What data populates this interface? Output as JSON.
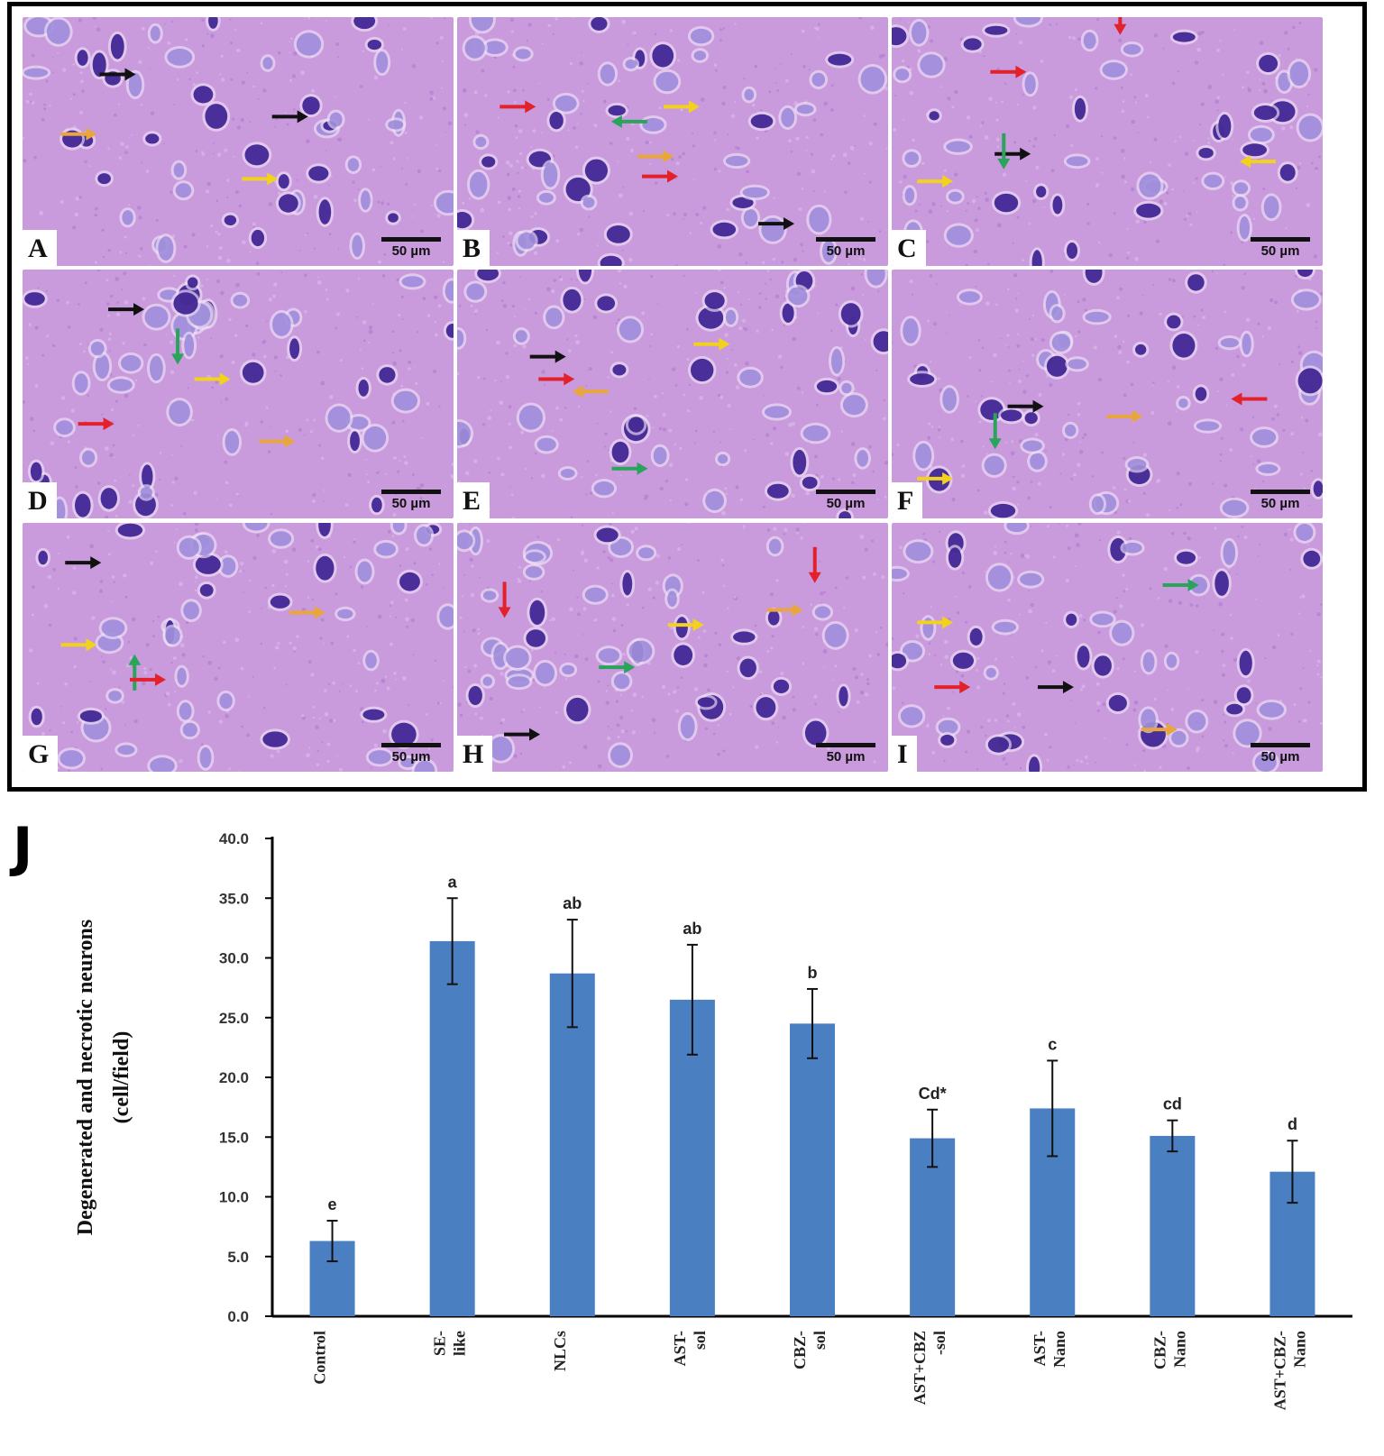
{
  "micrographs": {
    "panels": [
      {
        "letter": "A",
        "scale": "50 µm"
      },
      {
        "letter": "B",
        "scale": "50 µm"
      },
      {
        "letter": "C",
        "scale": "50 µm"
      },
      {
        "letter": "D",
        "scale": "50 µm"
      },
      {
        "letter": "E",
        "scale": "50 µm"
      },
      {
        "letter": "F",
        "scale": "50 µm"
      },
      {
        "letter": "G",
        "scale": "50 µm"
      },
      {
        "letter": "H",
        "scale": "50 µm"
      },
      {
        "letter": "I",
        "scale": "50 µm"
      }
    ],
    "arrow_colors": {
      "black": "#111111",
      "red": "#e3212b",
      "yellow": "#f2d21b",
      "orange": "#e9a63a",
      "green": "#2aa35b"
    },
    "tissue_color": "#c99bdd"
  },
  "chart_data": {
    "panel_label": "J",
    "type": "bar",
    "ylabel": [
      "Degenerated and necrotic neurons",
      "(cell/field)"
    ],
    "xlabel": "",
    "ylim": [
      0,
      40
    ],
    "yticks": [
      "0.0",
      "5.0",
      "10.0",
      "15.0",
      "20.0",
      "25.0",
      "30.0",
      "35.0",
      "40.0"
    ],
    "grid": false,
    "bar_color": "#4a7fc1",
    "categories": [
      [
        "Control"
      ],
      [
        "SE-",
        "like"
      ],
      [
        "NLCs"
      ],
      [
        "AST-",
        "sol"
      ],
      [
        "CBZ-",
        "sol"
      ],
      [
        "AST+CBZ",
        "-sol"
      ],
      [
        "AST-",
        "Nano"
      ],
      [
        "CBZ-",
        "Nano"
      ],
      [
        "AST+CBZ-",
        "Nano"
      ]
    ],
    "values": [
      6.3,
      31.4,
      28.7,
      26.5,
      24.5,
      14.9,
      17.4,
      15.1,
      12.1
    ],
    "errors": [
      1.7,
      3.6,
      4.5,
      4.6,
      2.9,
      2.4,
      4.0,
      1.3,
      2.6
    ],
    "significance": [
      "e",
      "a",
      "ab",
      "ab",
      "b",
      "Cd*",
      "c",
      "cd",
      "d"
    ]
  }
}
